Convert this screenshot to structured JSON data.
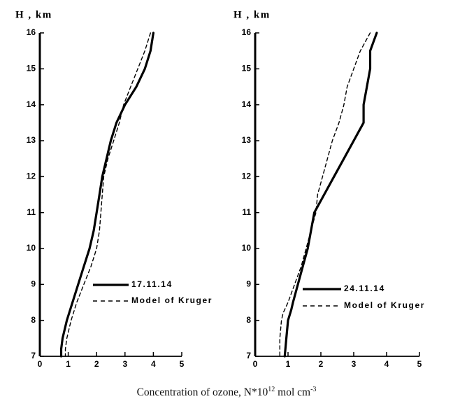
{
  "caption": {
    "prefix": "Concentration of ozone, N*10",
    "exp1": "12",
    "middle": " mol cm",
    "exp2": "-3"
  },
  "chart_data": [
    {
      "type": "line",
      "ylabel": "H , km",
      "xlim": [
        0,
        5
      ],
      "ylim": [
        7,
        16
      ],
      "x_ticks": [
        0,
        1,
        2,
        3,
        4,
        5
      ],
      "y_ticks": [
        7,
        8,
        9,
        10,
        11,
        12,
        13,
        14,
        15,
        16
      ],
      "grid": false,
      "legend_position": "lower-right",
      "series": [
        {
          "name": "17.11.14",
          "style": "solid",
          "points": [
            [
              4.0,
              16
            ],
            [
              3.9,
              15.5
            ],
            [
              3.7,
              15
            ],
            [
              3.4,
              14.5
            ],
            [
              3.0,
              14
            ],
            [
              2.7,
              13.5
            ],
            [
              2.5,
              13
            ],
            [
              2.35,
              12.5
            ],
            [
              2.2,
              12
            ],
            [
              2.1,
              11.5
            ],
            [
              2.0,
              11
            ],
            [
              1.9,
              10.5
            ],
            [
              1.75,
              10
            ],
            [
              1.55,
              9.5
            ],
            [
              1.35,
              9
            ],
            [
              1.15,
              8.5
            ],
            [
              0.95,
              8
            ],
            [
              0.8,
              7.5
            ],
            [
              0.75,
              7.2
            ],
            [
              0.75,
              7
            ]
          ]
        },
        {
          "name": "Model of Kruger",
          "style": "dashed",
          "points": [
            [
              3.9,
              16
            ],
            [
              3.7,
              15.5
            ],
            [
              3.45,
              15
            ],
            [
              3.2,
              14.5
            ],
            [
              2.95,
              14
            ],
            [
              2.8,
              13.5
            ],
            [
              2.6,
              13
            ],
            [
              2.4,
              12.5
            ],
            [
              2.25,
              12
            ],
            [
              2.2,
              11.5
            ],
            [
              2.15,
              11
            ],
            [
              2.1,
              10.5
            ],
            [
              2.0,
              10
            ],
            [
              1.8,
              9.5
            ],
            [
              1.55,
              9
            ],
            [
              1.3,
              8.5
            ],
            [
              1.1,
              8
            ],
            [
              0.95,
              7.5
            ],
            [
              0.9,
              7.2
            ],
            [
              0.9,
              7
            ]
          ]
        }
      ]
    },
    {
      "type": "line",
      "ylabel": "H , km",
      "xlim": [
        0,
        5
      ],
      "ylim": [
        7,
        16
      ],
      "x_ticks": [
        0,
        1,
        2,
        3,
        4,
        5
      ],
      "y_ticks": [
        7,
        8,
        9,
        10,
        11,
        12,
        13,
        14,
        15,
        16
      ],
      "grid": false,
      "legend_position": "lower-right",
      "series": [
        {
          "name": "24.11.14",
          "style": "solid",
          "points": [
            [
              3.7,
              16
            ],
            [
              3.5,
              15.5
            ],
            [
              3.5,
              15
            ],
            [
              3.4,
              14.5
            ],
            [
              3.3,
              14
            ],
            [
              3.3,
              13.5
            ],
            [
              3.0,
              13
            ],
            [
              2.7,
              12.5
            ],
            [
              2.4,
              12
            ],
            [
              2.1,
              11.5
            ],
            [
              1.8,
              11
            ],
            [
              1.7,
              10.5
            ],
            [
              1.6,
              10
            ],
            [
              1.45,
              9.5
            ],
            [
              1.3,
              9
            ],
            [
              1.15,
              8.5
            ],
            [
              1.1,
              8.3
            ],
            [
              1.0,
              8
            ],
            [
              0.95,
              7.5
            ],
            [
              0.9,
              7
            ]
          ]
        },
        {
          "name": "Model of Kruger",
          "style": "dashed",
          "points": [
            [
              3.5,
              16
            ],
            [
              3.2,
              15.5
            ],
            [
              3.0,
              15
            ],
            [
              2.8,
              14.5
            ],
            [
              2.7,
              14
            ],
            [
              2.55,
              13.5
            ],
            [
              2.35,
              13
            ],
            [
              2.2,
              12.5
            ],
            [
              2.05,
              12
            ],
            [
              1.9,
              11.5
            ],
            [
              1.85,
              11
            ],
            [
              1.7,
              10.5
            ],
            [
              1.55,
              10
            ],
            [
              1.4,
              9.5
            ],
            [
              1.2,
              9
            ],
            [
              1.0,
              8.5
            ],
            [
              0.85,
              8.2
            ],
            [
              0.8,
              8
            ],
            [
              0.75,
              7.5
            ],
            [
              0.75,
              7
            ]
          ]
        }
      ]
    }
  ]
}
